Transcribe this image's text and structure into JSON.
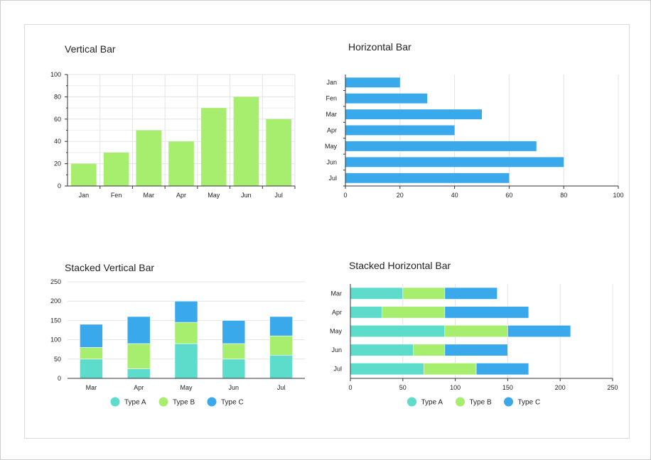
{
  "colors": {
    "green": "#a8ee6e",
    "blue": "#3aa9ec",
    "teal": "#5ddccc"
  },
  "chart_data": [
    {
      "type": "bar",
      "orientation": "vertical",
      "title": "Vertical Bar",
      "categories": [
        "Jan",
        "Fen",
        "Mar",
        "Apr",
        "May",
        "Jun",
        "Jul"
      ],
      "values": [
        20,
        30,
        50,
        40,
        70,
        80,
        60
      ],
      "ylim": [
        0,
        100
      ],
      "yticks": [
        0,
        20,
        40,
        60,
        80,
        100
      ],
      "color": "#a8ee6e",
      "grid": true
    },
    {
      "type": "bar",
      "orientation": "horizontal",
      "title": "Horizontal Bar",
      "categories": [
        "Jan",
        "Fen",
        "Mar",
        "Apr",
        "May",
        "Jun",
        "Jul"
      ],
      "values": [
        20,
        30,
        50,
        40,
        70,
        80,
        60
      ],
      "xlim": [
        0,
        100
      ],
      "xticks": [
        0,
        20,
        40,
        60,
        80,
        100
      ],
      "color": "#3aa9ec",
      "grid": true
    },
    {
      "type": "bar",
      "orientation": "vertical",
      "stacked": true,
      "title": "Stacked Vertical Bar",
      "categories": [
        "Mar",
        "Apr",
        "May",
        "Jun",
        "Jul"
      ],
      "series": [
        {
          "name": "Type A",
          "values": [
            50,
            25,
            90,
            50,
            60
          ],
          "color": "#5ddccc"
        },
        {
          "name": "Type B",
          "values": [
            30,
            65,
            55,
            40,
            50
          ],
          "color": "#a8ee6e"
        },
        {
          "name": "Type C",
          "values": [
            60,
            70,
            55,
            60,
            50
          ],
          "color": "#3aa9ec"
        }
      ],
      "ylim": [
        0,
        250
      ],
      "yticks": [
        0,
        50,
        100,
        150,
        200,
        250
      ],
      "legend": "bottom",
      "grid": true
    },
    {
      "type": "bar",
      "orientation": "horizontal",
      "stacked": true,
      "title": "Stacked Horizontal Bar",
      "categories": [
        "Mar",
        "Apr",
        "May",
        "Jun",
        "Jul"
      ],
      "series": [
        {
          "name": "Type A",
          "values": [
            50,
            30,
            90,
            60,
            70
          ],
          "color": "#5ddccc"
        },
        {
          "name": "Type B",
          "values": [
            40,
            60,
            60,
            30,
            50
          ],
          "color": "#a8ee6e"
        },
        {
          "name": "Type C",
          "values": [
            50,
            80,
            60,
            60,
            50
          ],
          "color": "#3aa9ec"
        }
      ],
      "xlim": [
        0,
        250
      ],
      "xticks": [
        0,
        50,
        100,
        150,
        200,
        250
      ],
      "legend": "bottom",
      "grid": true
    }
  ]
}
